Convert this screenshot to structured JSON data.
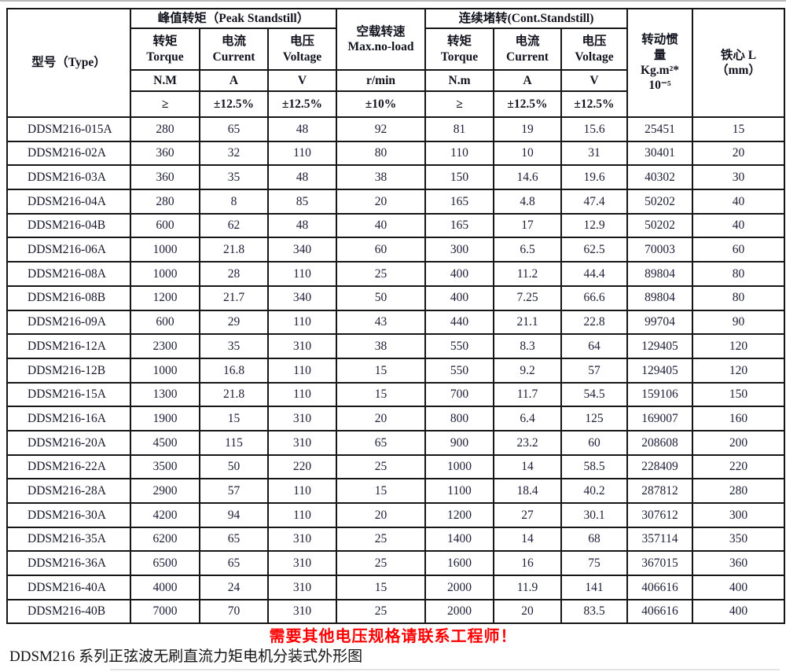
{
  "table": {
    "header": {
      "type_label": "型号（Type）",
      "peak_group": "峰值转矩（Peak Standstill）",
      "noload_line1": "空载转速",
      "noload_line2": "Max.no-load",
      "cont_group": "连续堵转(Cont.Standstill)",
      "inertia_line1": "转动惯",
      "inertia_line2": "量",
      "inertia_line3": "Kg.m²*",
      "inertia_line4": "10⁻⁵",
      "core_line1": "铁心 L",
      "core_line2": "（mm）",
      "torque_cn": "转矩",
      "torque_en": "Torque",
      "current_cn": "电流",
      "current_en": "Current",
      "voltage_cn": "电压",
      "voltage_en": "Voltage",
      "unit_torque_peak": "N.M",
      "unit_current": "A",
      "unit_voltage": "V",
      "unit_speed": "r/min",
      "unit_torque_cont": "N.m",
      "tol_torque": "≥",
      "tol_current": "±12.5%",
      "tol_voltage": "±12.5%",
      "tol_speed": "±10%"
    },
    "rows": [
      [
        "DDSM216-015A",
        "280",
        "65",
        "48",
        "92",
        "81",
        "19",
        "15.6",
        "25451",
        "15"
      ],
      [
        "DDSM216-02A",
        "360",
        "32",
        "110",
        "80",
        "110",
        "10",
        "31",
        "30401",
        "20"
      ],
      [
        "DDSM216-03A",
        "360",
        "35",
        "48",
        "38",
        "150",
        "14.6",
        "19.6",
        "40302",
        "30"
      ],
      [
        "DDSM216-04A",
        "280",
        "8",
        "85",
        "20",
        "165",
        "4.8",
        "47.4",
        "50202",
        "40"
      ],
      [
        "DDSM216-04B",
        "600",
        "62",
        "48",
        "40",
        "165",
        "17",
        "12.9",
        "50202",
        "40"
      ],
      [
        "DDSM216-06A",
        "1000",
        "21.8",
        "340",
        "60",
        "300",
        "6.5",
        "62.5",
        "70003",
        "60"
      ],
      [
        "DDSM216-08A",
        "1000",
        "28",
        "110",
        "25",
        "400",
        "11.2",
        "44.4",
        "89804",
        "80"
      ],
      [
        "DDSM216-08B",
        "1200",
        "21.7",
        "340",
        "50",
        "400",
        "7.25",
        "66.6",
        "89804",
        "80"
      ],
      [
        "DDSM216-09A",
        "600",
        "29",
        "110",
        "43",
        "440",
        "21.1",
        "22.8",
        "99704",
        "90"
      ],
      [
        "DDSM216-12A",
        "2300",
        "35",
        "310",
        "38",
        "550",
        "8.3",
        "64",
        "129405",
        "120"
      ],
      [
        "DDSM216-12B",
        "1000",
        "16.8",
        "110",
        "15",
        "550",
        "9.2",
        "57",
        "129405",
        "120"
      ],
      [
        "DDSM216-15A",
        "1300",
        "21.8",
        "110",
        "15",
        "700",
        "11.7",
        "54.5",
        "159106",
        "150"
      ],
      [
        "DDSM216-16A",
        "1900",
        "15",
        "310",
        "20",
        "800",
        "6.4",
        "125",
        "169007",
        "160"
      ],
      [
        "DDSM216-20A",
        "4500",
        "115",
        "310",
        "65",
        "900",
        "23.2",
        "60",
        "208608",
        "200"
      ],
      [
        "DDSM216-22A",
        "3500",
        "50",
        "220",
        "25",
        "1000",
        "14",
        "58.5",
        "228409",
        "220"
      ],
      [
        "DDSM216-28A",
        "2900",
        "57",
        "110",
        "15",
        "1100",
        "18.4",
        "40.2",
        "287812",
        "280"
      ],
      [
        "DDSM216-30A",
        "4200",
        "94",
        "110",
        "20",
        "1200",
        "27",
        "30.1",
        "307612",
        "300"
      ],
      [
        "DDSM216-35A",
        "6200",
        "65",
        "310",
        "25",
        "1400",
        "14",
        "68",
        "357114",
        "350"
      ],
      [
        "DDSM216-36A",
        "6500",
        "65",
        "310",
        "25",
        "1600",
        "16",
        "75",
        "367015",
        "360"
      ],
      [
        "DDSM216-40A",
        "4000",
        "24",
        "310",
        "15",
        "2000",
        "11.9",
        "141",
        "406616",
        "400"
      ],
      [
        "DDSM216-40B",
        "7000",
        "70",
        "310",
        "25",
        "2000",
        "20",
        "83.5",
        "406616",
        "400"
      ]
    ]
  },
  "footer": {
    "red_note": "需要其他电压规格请联系工程师！",
    "caption": "DDSM216 系列正弦波无刷直流力矩电机分装式外形图"
  }
}
